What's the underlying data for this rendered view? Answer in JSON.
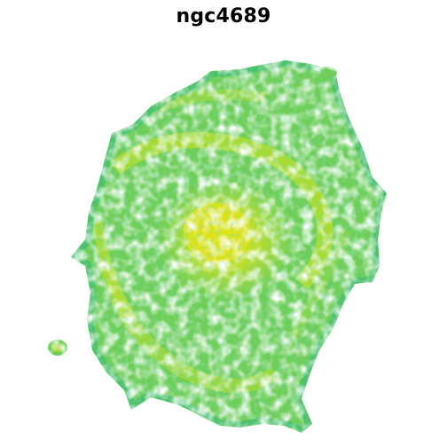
{
  "title": "ngc4689",
  "colors": {
    "background": "#ffffff",
    "low": "#35b779",
    "mid": "#6ece58",
    "high": "#b5de2b",
    "peak": "#e0e317"
  },
  "figure": {
    "description_icon": "galaxy-moment-map-image",
    "colormap": "viridis"
  }
}
